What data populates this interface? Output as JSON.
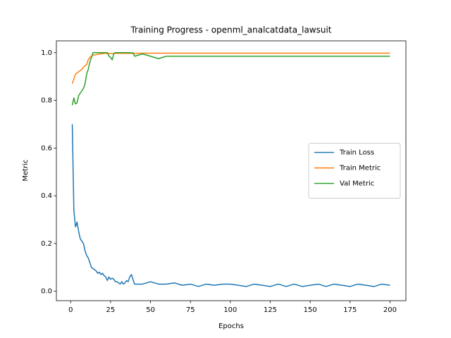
{
  "chart_data": {
    "type": "line",
    "title": "Training Progress - openml_analcatdata_lawsuit",
    "xlabel": "Epochs",
    "ylabel": "Metric",
    "x": [
      1,
      2,
      3,
      4,
      5,
      6,
      7,
      8,
      9,
      10,
      11,
      12,
      13,
      14,
      15,
      16,
      17,
      18,
      19,
      20,
      21,
      22,
      23,
      24,
      25,
      26,
      27,
      28,
      29,
      30,
      31,
      32,
      33,
      34,
      35,
      36,
      37,
      38,
      39,
      40,
      45,
      50,
      55,
      60,
      65,
      70,
      75,
      80,
      85,
      90,
      95,
      100,
      105,
      110,
      115,
      120,
      125,
      130,
      135,
      140,
      145,
      150,
      155,
      160,
      165,
      170,
      175,
      180,
      185,
      190,
      195,
      200
    ],
    "series": [
      {
        "name": "Train Loss",
        "color": "#1f77b4",
        "values": [
          0.7,
          0.34,
          0.27,
          0.29,
          0.25,
          0.22,
          0.21,
          0.2,
          0.17,
          0.15,
          0.14,
          0.12,
          0.1,
          0.095,
          0.09,
          0.085,
          0.075,
          0.08,
          0.07,
          0.075,
          0.065,
          0.06,
          0.045,
          0.06,
          0.05,
          0.055,
          0.05,
          0.04,
          0.04,
          0.035,
          0.03,
          0.04,
          0.03,
          0.035,
          0.045,
          0.04,
          0.06,
          0.07,
          0.05,
          0.03,
          0.03,
          0.04,
          0.03,
          0.03,
          0.035,
          0.025,
          0.03,
          0.02,
          0.03,
          0.025,
          0.03,
          0.03,
          0.025,
          0.02,
          0.03,
          0.025,
          0.02,
          0.03,
          0.02,
          0.03,
          0.02,
          0.025,
          0.03,
          0.02,
          0.03,
          0.025,
          0.02,
          0.03,
          0.025,
          0.02,
          0.03,
          0.025
        ]
      },
      {
        "name": "Train Metric",
        "color": "#ff7f0e",
        "values": [
          0.87,
          0.89,
          0.91,
          0.915,
          0.92,
          0.925,
          0.93,
          0.94,
          0.945,
          0.95,
          0.97,
          0.98,
          0.985,
          0.99,
          0.99,
          0.992,
          0.993,
          0.995,
          0.995,
          0.996,
          0.997,
          0.997,
          0.997,
          0.997,
          0.997,
          0.997,
          0.997,
          0.997,
          0.997,
          0.997,
          0.997,
          0.997,
          0.997,
          0.997,
          0.997,
          0.997,
          0.997,
          0.997,
          0.997,
          0.997,
          0.998,
          0.998,
          0.998,
          0.998,
          0.998,
          0.998,
          0.998,
          0.998,
          0.998,
          0.998,
          0.998,
          0.998,
          0.998,
          0.998,
          0.998,
          0.998,
          0.998,
          0.998,
          0.998,
          0.998,
          0.998,
          0.998,
          0.998,
          0.998,
          0.998,
          0.998,
          0.998,
          0.998,
          0.998,
          0.998,
          0.998,
          0.998
        ]
      },
      {
        "name": "Val Metric",
        "color": "#2ca02c",
        "values": [
          0.78,
          0.81,
          0.785,
          0.79,
          0.82,
          0.83,
          0.84,
          0.85,
          0.87,
          0.91,
          0.93,
          0.96,
          0.98,
          1.0,
          1.0,
          1.0,
          1.0,
          1.0,
          1.0,
          1.0,
          1.0,
          1.0,
          1.0,
          0.985,
          0.98,
          0.97,
          0.995,
          1.0,
          1.0,
          1.0,
          1.0,
          1.0,
          1.0,
          1.0,
          1.0,
          1.0,
          1.0,
          0.998,
          1.0,
          0.985,
          0.995,
          0.985,
          0.975,
          0.985,
          0.985,
          0.985,
          0.985,
          0.985,
          0.985,
          0.985,
          0.985,
          0.985,
          0.985,
          0.985,
          0.985,
          0.985,
          0.985,
          0.985,
          0.985,
          0.985,
          0.985,
          0.985,
          0.985,
          0.985,
          0.985,
          0.985,
          0.985,
          0.985,
          0.985,
          0.985,
          0.985,
          0.985
        ]
      }
    ],
    "xlim": [
      -8.95,
      209.95
    ],
    "xticks": [
      0,
      25,
      50,
      75,
      100,
      125,
      150,
      175,
      200
    ],
    "ylim": [
      -0.0395,
      1.0495
    ],
    "yticks": [
      {
        "value": 0,
        "label": "0.0"
      },
      0.2,
      0.4,
      0.6,
      0.8,
      {
        "value": 1,
        "label": "1.0"
      }
    ],
    "legend": "center right",
    "grid": false
  }
}
